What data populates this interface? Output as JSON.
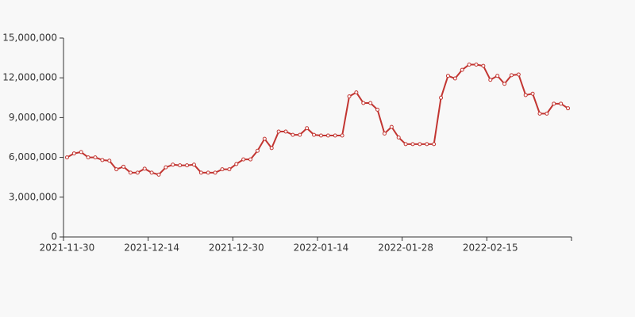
{
  "chart_data": {
    "type": "line",
    "categories": [
      "2021-11-30",
      null,
      null,
      null,
      null,
      null,
      null,
      null,
      null,
      null,
      null,
      null,
      "2021-12-14",
      null,
      null,
      null,
      null,
      null,
      null,
      null,
      null,
      null,
      null,
      null,
      "2021-12-30",
      null,
      null,
      null,
      null,
      null,
      null,
      null,
      null,
      null,
      null,
      null,
      "2022-01-14",
      null,
      null,
      null,
      null,
      null,
      null,
      null,
      null,
      null,
      null,
      null,
      "2022-01-28",
      null,
      null,
      null,
      null,
      null,
      null,
      null,
      null,
      null,
      null,
      null,
      "2022-02-15",
      null,
      null,
      null,
      null,
      null,
      null,
      null,
      null,
      null,
      null,
      null
    ],
    "series": [
      {
        "color": "#c23531",
        "values": [
          6000000,
          6300000,
          6400000,
          6000000,
          6000000,
          5800000,
          5750000,
          5100000,
          5300000,
          4850000,
          4850000,
          5150000,
          4850000,
          4700000,
          5250000,
          5450000,
          5400000,
          5400000,
          5450000,
          4850000,
          4850000,
          4850000,
          5100000,
          5100000,
          5500000,
          5850000,
          5850000,
          6500000,
          7400000,
          6700000,
          7950000,
          7950000,
          7700000,
          7700000,
          8200000,
          7700000,
          7650000,
          7650000,
          7650000,
          7650000,
          10600000,
          10900000,
          10100000,
          10100000,
          9600000,
          7800000,
          8300000,
          7500000,
          7000000,
          7000000,
          7000000,
          7000000,
          7000000,
          10500000,
          12150000,
          11950000,
          12600000,
          13000000,
          13000000,
          12900000,
          11850000,
          12150000,
          11550000,
          12200000,
          12250000,
          10700000,
          10800000,
          9300000,
          9300000,
          10050000,
          10050000,
          9700000
        ]
      }
    ],
    "ylim": [
      0,
      15000000
    ],
    "yticks": [
      0,
      {
        "value": 3000000,
        "label": "3,000,000"
      },
      {
        "value": 6000000,
        "label": "6,000,000"
      },
      {
        "value": 9000000,
        "label": "9,000,000"
      },
      {
        "value": 12000000,
        "label": "12,000,000"
      },
      {
        "value": 15000000,
        "label": "15,000,000"
      }
    ]
  }
}
